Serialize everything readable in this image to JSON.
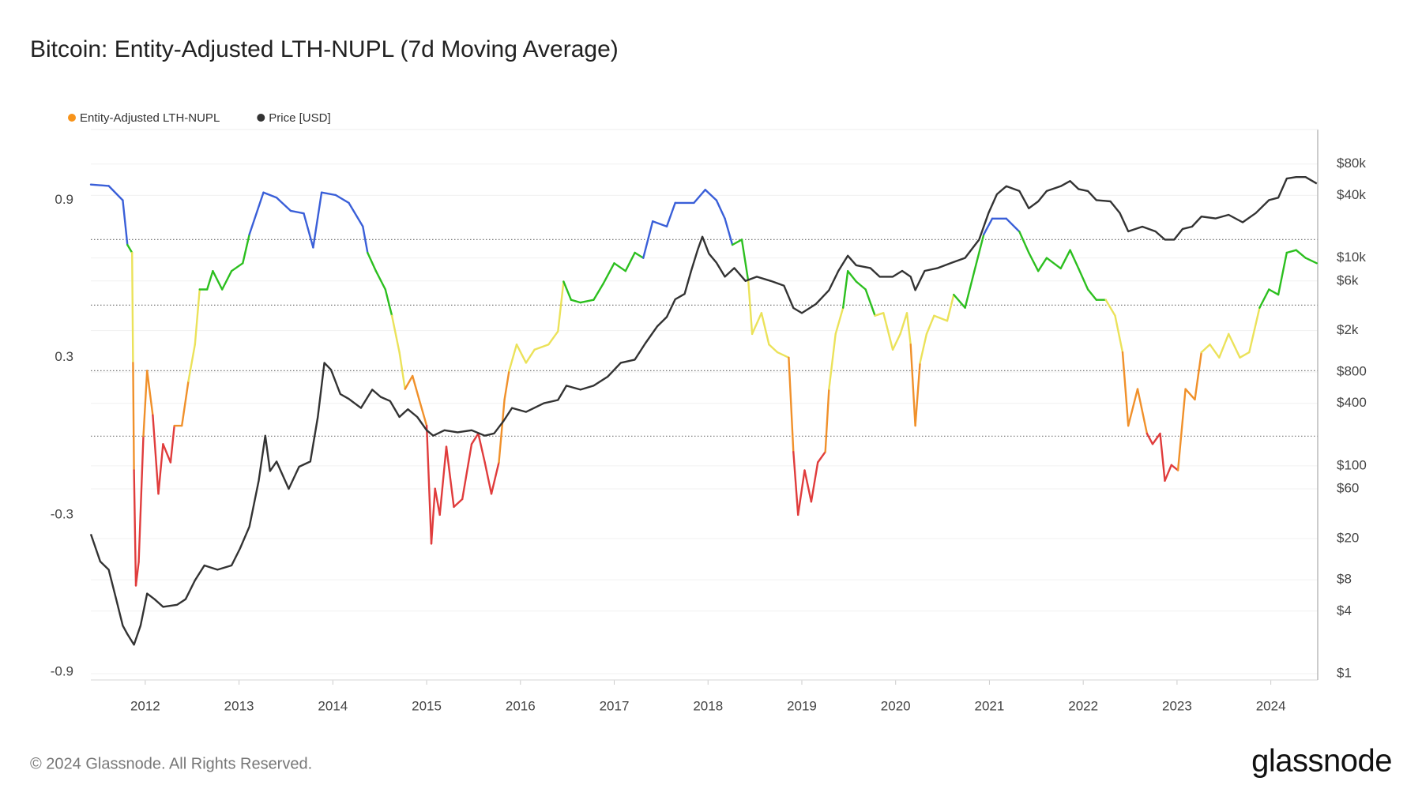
{
  "chart_data": {
    "type": "line",
    "title": "Bitcoin: Entity-Adjusted LTH-NUPL (7d Moving Average)",
    "source": "© 2024 Glassnode. All Rights Reserved.",
    "logo": "glassnode",
    "xlim": [
      2011.42,
      2024.5
    ],
    "xticks": [
      2012,
      2013,
      2014,
      2015,
      2016,
      2017,
      2018,
      2019,
      2020,
      2021,
      2022,
      2023,
      2024
    ],
    "ylim": [
      -0.93,
      1.17
    ],
    "yticks": [
      -0.9,
      -0.3,
      0.3,
      0.9
    ],
    "y2lim": [
      0.87,
      172000
    ],
    "y2log": true,
    "y2ticks": [
      {
        "value": 1,
        "label": "$1"
      },
      {
        "value": 4,
        "label": "$4"
      },
      {
        "value": 8,
        "label": "$8"
      },
      {
        "value": 20,
        "label": "$20"
      },
      {
        "value": 60,
        "label": "$60"
      },
      {
        "value": 100,
        "label": "$100"
      },
      {
        "value": 400,
        "label": "$400"
      },
      {
        "value": 800,
        "label": "$800"
      },
      {
        "value": 2000,
        "label": "$2k"
      },
      {
        "value": 6000,
        "label": "$6k"
      },
      {
        "value": 10000,
        "label": "$10k"
      },
      {
        "value": 40000,
        "label": "$40k"
      },
      {
        "value": 80000,
        "label": "$80k"
      }
    ],
    "zone_thresholds": [
      0,
      0.25,
      0.5,
      0.75
    ],
    "zone_colors": [
      "#e03c3c",
      "#f0902a",
      "#ebe25a",
      "#2cbf1f",
      "#3a5fd8"
    ],
    "legend": "top-left",
    "series": [
      {
        "name": "Entity-Adjusted LTH-NUPL",
        "color": "#f7931a",
        "x": [
          2011.42,
          2011.61,
          2011.76,
          2011.81,
          2011.86,
          2011.87,
          2011.88,
          2011.9,
          2011.93,
          2011.98,
          2012.02,
          2012.08,
          2012.14,
          2012.19,
          2012.27,
          2012.31,
          2012.39,
          2012.46,
          2012.53,
          2012.58,
          2012.66,
          2012.72,
          2012.82,
          2012.92,
          2013.04,
          2013.11,
          2013.26,
          2013.4,
          2013.55,
          2013.69,
          2013.79,
          2013.88,
          2014.03,
          2014.17,
          2014.32,
          2014.37,
          2014.46,
          2014.56,
          2014.63,
          2014.71,
          2014.77,
          2014.85,
          2014.92,
          2015.0,
          2015.05,
          2015.09,
          2015.14,
          2015.21,
          2015.29,
          2015.38,
          2015.48,
          2015.55,
          2015.62,
          2015.69,
          2015.77,
          2015.83,
          2015.88,
          2015.96,
          2016.06,
          2016.15,
          2016.3,
          2016.4,
          2016.46,
          2016.54,
          2016.64,
          2016.78,
          2016.88,
          2017.0,
          2017.12,
          2017.22,
          2017.31,
          2017.41,
          2017.56,
          2017.65,
          2017.85,
          2017.97,
          2018.09,
          2018.18,
          2018.26,
          2018.36,
          2018.43,
          2018.47,
          2018.57,
          2018.65,
          2018.74,
          2018.86,
          2018.91,
          2018.96,
          2019.03,
          2019.1,
          2019.17,
          2019.25,
          2019.29,
          2019.36,
          2019.44,
          2019.49,
          2019.58,
          2019.68,
          2019.78,
          2019.87,
          2019.97,
          2020.05,
          2020.12,
          2020.16,
          2020.21,
          2020.26,
          2020.33,
          2020.41,
          2020.55,
          2020.62,
          2020.74,
          2020.84,
          2020.94,
          2021.03,
          2021.18,
          2021.32,
          2021.42,
          2021.52,
          2021.61,
          2021.76,
          2021.86,
          2021.95,
          2022.05,
          2022.14,
          2022.24,
          2022.34,
          2022.42,
          2022.48,
          2022.58,
          2022.68,
          2022.74,
          2022.82,
          2022.87,
          2022.94,
          2023.01,
          2023.09,
          2023.19,
          2023.26,
          2023.35,
          2023.45,
          2023.55,
          2023.67,
          2023.77,
          2023.88,
          2023.98,
          2024.08,
          2024.17,
          2024.27,
          2024.37,
          2024.49
        ],
        "values": [
          0.96,
          0.955,
          0.9,
          0.73,
          0.7,
          0.28,
          -0.13,
          -0.57,
          -0.48,
          0.0,
          0.25,
          0.08,
          -0.22,
          -0.03,
          -0.1,
          0.04,
          0.04,
          0.21,
          0.35,
          0.56,
          0.56,
          0.63,
          0.56,
          0.63,
          0.66,
          0.77,
          0.93,
          0.91,
          0.86,
          0.85,
          0.72,
          0.93,
          0.92,
          0.89,
          0.8,
          0.7,
          0.63,
          0.56,
          0.46,
          0.32,
          0.18,
          0.23,
          0.14,
          0.04,
          -0.41,
          -0.2,
          -0.3,
          -0.04,
          -0.27,
          -0.24,
          -0.03,
          0.01,
          -0.1,
          -0.22,
          -0.1,
          0.14,
          0.25,
          0.35,
          0.28,
          0.33,
          0.35,
          0.4,
          0.59,
          0.52,
          0.51,
          0.52,
          0.58,
          0.66,
          0.63,
          0.7,
          0.68,
          0.82,
          0.8,
          0.89,
          0.89,
          0.94,
          0.9,
          0.83,
          0.73,
          0.75,
          0.59,
          0.39,
          0.47,
          0.35,
          0.32,
          0.3,
          -0.06,
          -0.3,
          -0.13,
          -0.25,
          -0.1,
          -0.06,
          0.18,
          0.39,
          0.49,
          0.63,
          0.59,
          0.56,
          0.46,
          0.47,
          0.33,
          0.39,
          0.47,
          0.35,
          0.04,
          0.28,
          0.39,
          0.46,
          0.44,
          0.54,
          0.49,
          0.63,
          0.77,
          0.83,
          0.83,
          0.78,
          0.7,
          0.63,
          0.68,
          0.64,
          0.71,
          0.64,
          0.56,
          0.52,
          0.52,
          0.46,
          0.32,
          0.04,
          0.18,
          0.01,
          -0.03,
          0.01,
          -0.17,
          -0.11,
          -0.13,
          0.18,
          0.14,
          0.32,
          0.35,
          0.3,
          0.39,
          0.3,
          0.32,
          0.49,
          0.56,
          0.54,
          0.7,
          0.71,
          0.68,
          0.66
        ]
      },
      {
        "name": "Price [USD]",
        "color": "#333333",
        "axis": "y2",
        "x": [
          2011.42,
          2011.52,
          2011.61,
          2011.69,
          2011.76,
          2011.81,
          2011.88,
          2011.95,
          2012.02,
          2012.1,
          2012.19,
          2012.34,
          2012.43,
          2012.53,
          2012.63,
          2012.77,
          2012.92,
          2013.01,
          2013.11,
          2013.21,
          2013.28,
          2013.33,
          2013.4,
          2013.53,
          2013.64,
          2013.76,
          2013.84,
          2013.91,
          2013.98,
          2014.08,
          2014.17,
          2014.3,
          2014.42,
          2014.51,
          2014.61,
          2014.71,
          2014.8,
          2014.9,
          2015.0,
          2015.07,
          2015.19,
          2015.33,
          2015.48,
          2015.62,
          2015.72,
          2015.82,
          2015.91,
          2016.06,
          2016.25,
          2016.4,
          2016.49,
          2016.64,
          2016.78,
          2016.93,
          2017.07,
          2017.22,
          2017.33,
          2017.46,
          2017.56,
          2017.65,
          2017.75,
          2017.82,
          2017.89,
          2017.94,
          2018.01,
          2018.09,
          2018.18,
          2018.28,
          2018.4,
          2018.52,
          2018.67,
          2018.81,
          2018.91,
          2019.0,
          2019.15,
          2019.29,
          2019.39,
          2019.49,
          2019.58,
          2019.73,
          2019.83,
          2019.97,
          2020.07,
          2020.16,
          2020.21,
          2020.31,
          2020.45,
          2020.6,
          2020.74,
          2020.89,
          2020.99,
          2021.08,
          2021.18,
          2021.32,
          2021.42,
          2021.52,
          2021.61,
          2021.76,
          2021.86,
          2021.95,
          2022.05,
          2022.14,
          2022.29,
          2022.39,
          2022.48,
          2022.63,
          2022.77,
          2022.87,
          2022.97,
          2023.06,
          2023.16,
          2023.26,
          2023.41,
          2023.55,
          2023.7,
          2023.84,
          2023.98,
          2024.08,
          2024.17,
          2024.27,
          2024.37,
          2024.49
        ],
        "values": [
          22,
          12,
          10,
          5.2,
          2.9,
          2.4,
          1.9,
          2.9,
          5.9,
          5.2,
          4.4,
          4.6,
          5.2,
          7.9,
          11,
          10,
          11,
          16,
          26,
          72,
          195,
          89,
          110,
          60,
          98,
          110,
          295,
          980,
          840,
          490,
          440,
          360,
          540,
          460,
          420,
          295,
          350,
          295,
          220,
          195,
          220,
          210,
          220,
          195,
          205,
          270,
          360,
          330,
          400,
          430,
          590,
          540,
          590,
          720,
          980,
          1050,
          1500,
          2200,
          2700,
          4000,
          4500,
          7500,
          12000,
          16000,
          11000,
          9000,
          6600,
          8000,
          6000,
          6600,
          6000,
          5400,
          3300,
          2950,
          3600,
          4900,
          7500,
          10500,
          8500,
          8000,
          6600,
          6600,
          7500,
          6600,
          4900,
          7500,
          8000,
          9000,
          10000,
          15000,
          27000,
          41000,
          49000,
          44000,
          30000,
          35000,
          44000,
          49000,
          55000,
          46000,
          44000,
          36000,
          35000,
          27000,
          18000,
          20000,
          18000,
          15000,
          15000,
          19000,
          20000,
          25000,
          24000,
          26000,
          22000,
          27000,
          36000,
          38000,
          58000,
          60000,
          60000,
          52000
        ]
      }
    ]
  }
}
